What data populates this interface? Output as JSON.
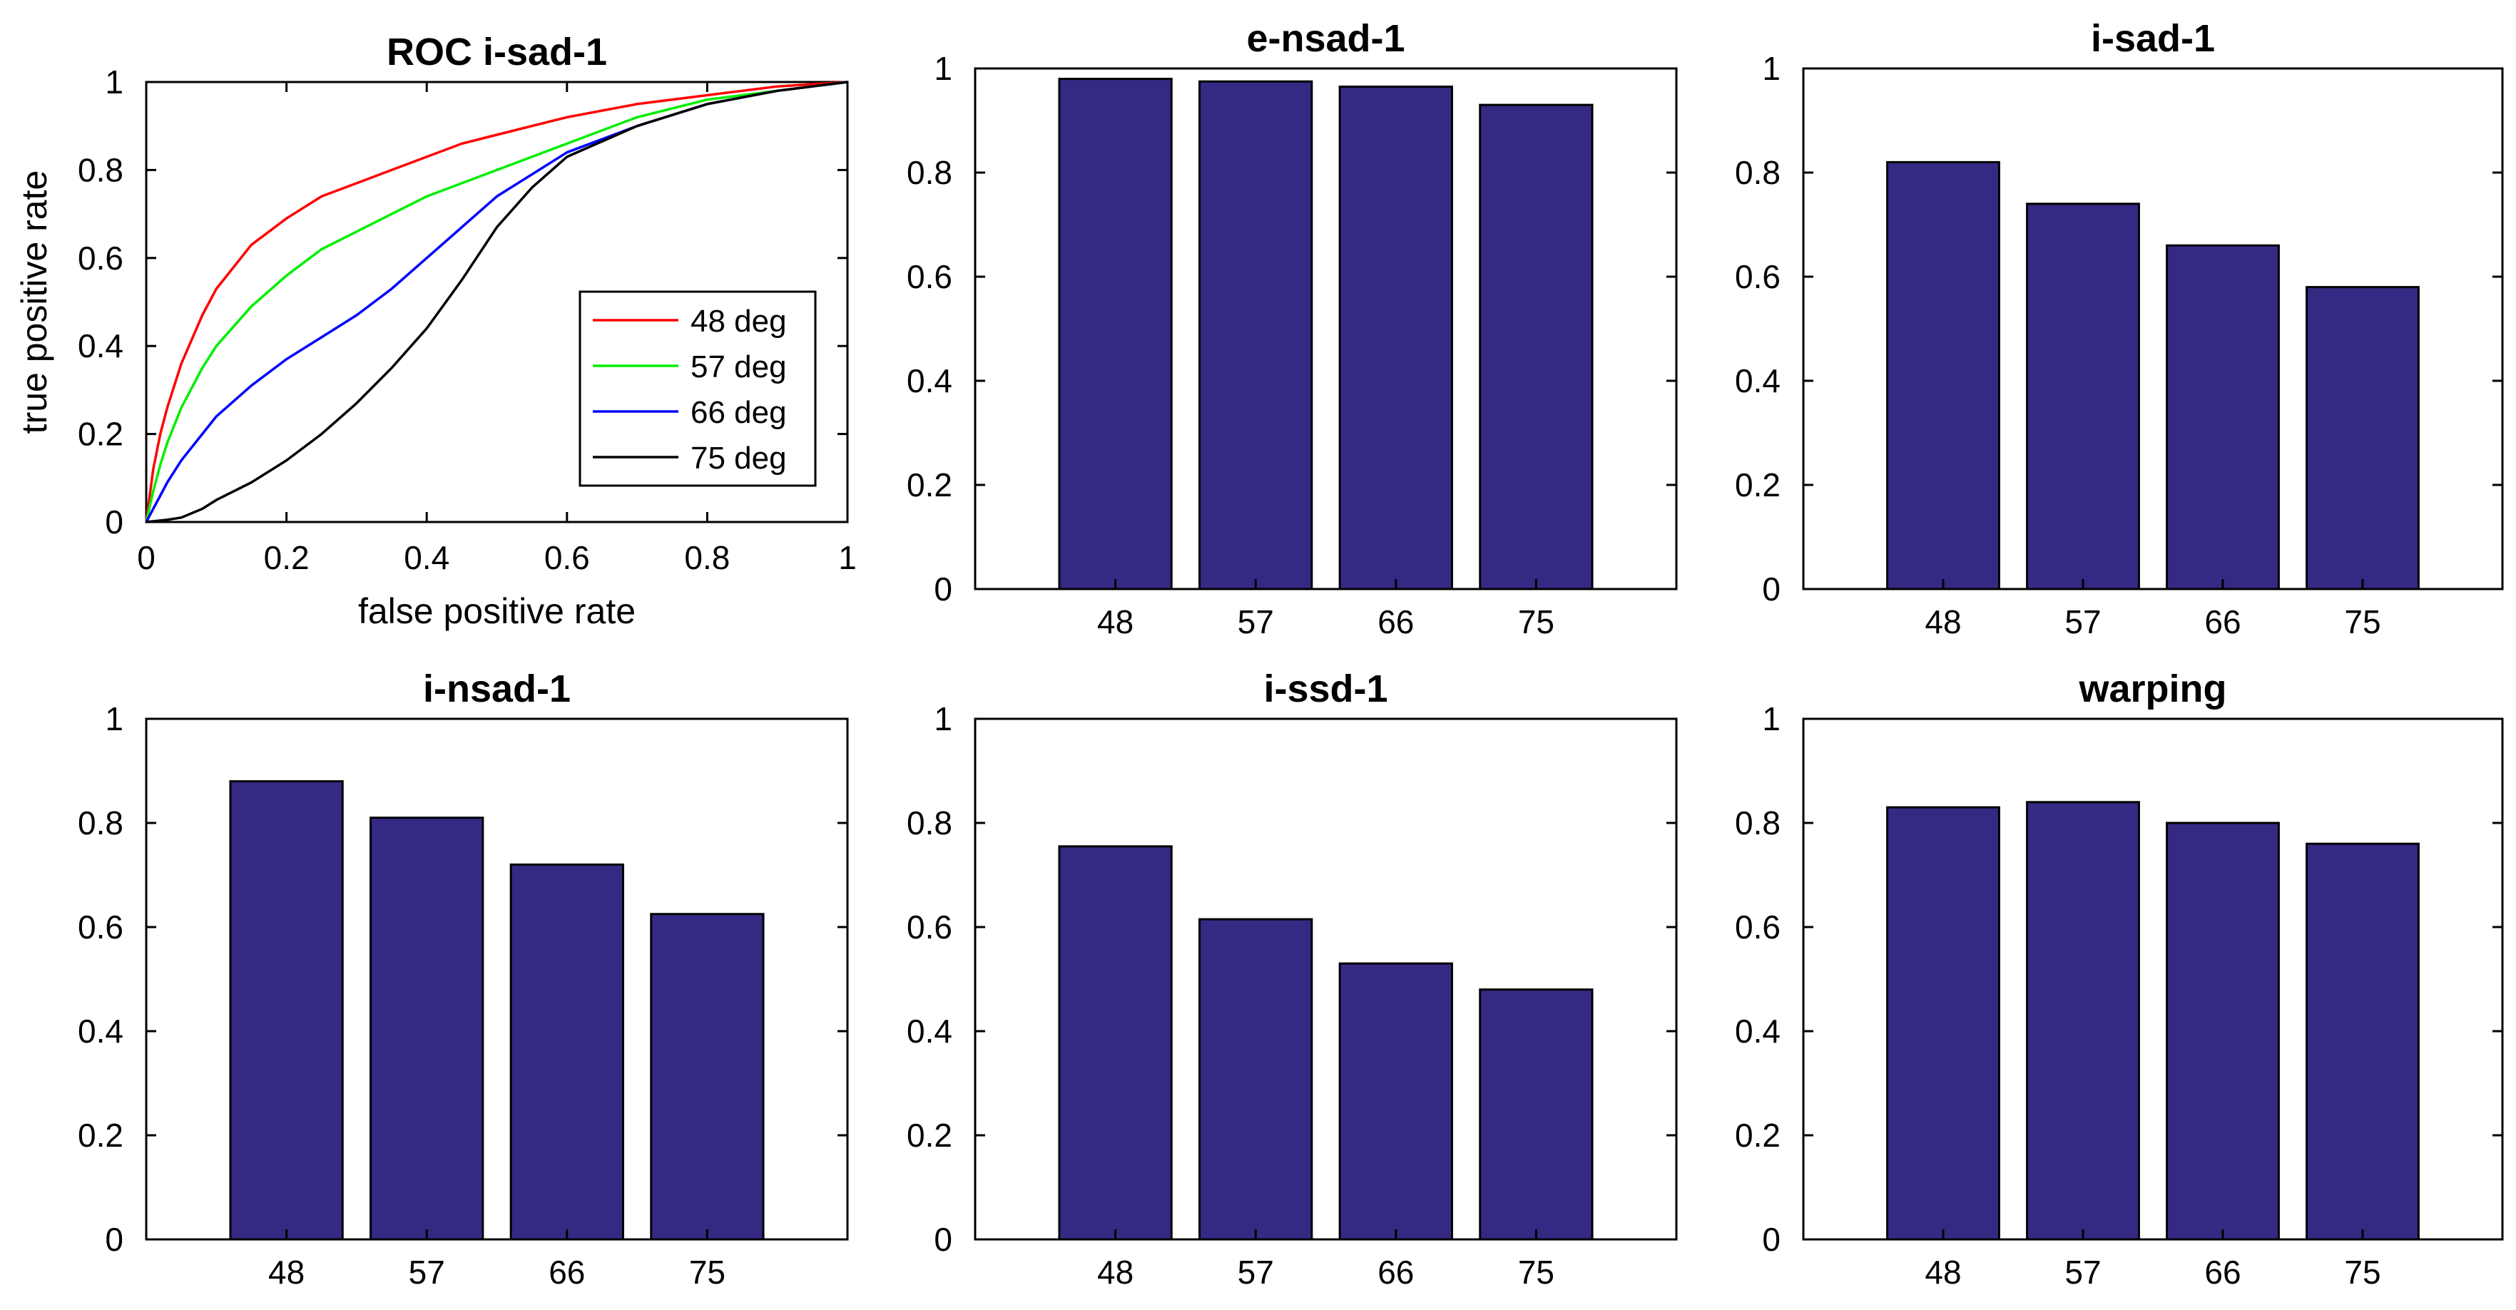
{
  "chart_data": [
    {
      "type": "line",
      "title": "ROC i-sad-1",
      "xlabel": "false positive rate",
      "ylabel": "true positive rate",
      "xlim": [
        0,
        1
      ],
      "ylim": [
        0,
        1
      ],
      "xticks": [
        "0",
        "0.2",
        "0.4",
        "0.6",
        "0.8",
        "1"
      ],
      "yticks": [
        "0",
        "0.2",
        "0.4",
        "0.6",
        "0.8",
        "1"
      ],
      "grid": false,
      "legend_position": "lower-right",
      "series": [
        {
          "name": "48 deg",
          "color": "#ff0000",
          "x": [
            0,
            0.01,
            0.02,
            0.03,
            0.05,
            0.08,
            0.1,
            0.15,
            0.2,
            0.25,
            0.3,
            0.35,
            0.4,
            0.45,
            0.5,
            0.6,
            0.7,
            0.8,
            0.9,
            0.95,
            1
          ],
          "y": [
            0,
            0.12,
            0.2,
            0.26,
            0.36,
            0.47,
            0.53,
            0.63,
            0.69,
            0.74,
            0.77,
            0.8,
            0.83,
            0.86,
            0.88,
            0.92,
            0.95,
            0.97,
            0.99,
            0.995,
            1
          ]
        },
        {
          "name": "57 deg",
          "color": "#00ee00",
          "x": [
            0,
            0.01,
            0.02,
            0.03,
            0.05,
            0.08,
            0.1,
            0.15,
            0.2,
            0.25,
            0.3,
            0.35,
            0.4,
            0.45,
            0.5,
            0.6,
            0.7,
            0.8,
            0.9,
            0.95,
            1
          ],
          "y": [
            0,
            0.07,
            0.13,
            0.18,
            0.26,
            0.35,
            0.4,
            0.49,
            0.56,
            0.62,
            0.66,
            0.7,
            0.74,
            0.77,
            0.8,
            0.86,
            0.92,
            0.96,
            0.98,
            0.99,
            1
          ]
        },
        {
          "name": "66 deg",
          "color": "#0000ff",
          "x": [
            0,
            0.01,
            0.02,
            0.03,
            0.05,
            0.08,
            0.1,
            0.15,
            0.2,
            0.25,
            0.3,
            0.35,
            0.4,
            0.45,
            0.5,
            0.6,
            0.7,
            0.8,
            0.9,
            0.95,
            1
          ],
          "y": [
            0,
            0.03,
            0.06,
            0.09,
            0.14,
            0.2,
            0.24,
            0.31,
            0.37,
            0.42,
            0.47,
            0.53,
            0.6,
            0.67,
            0.74,
            0.84,
            0.9,
            0.95,
            0.98,
            0.99,
            1
          ]
        },
        {
          "name": "75 deg",
          "color": "#000000",
          "x": [
            0,
            0.03,
            0.05,
            0.08,
            0.1,
            0.15,
            0.2,
            0.25,
            0.3,
            0.35,
            0.4,
            0.45,
            0.5,
            0.55,
            0.6,
            0.7,
            0.8,
            0.9,
            0.95,
            1
          ],
          "y": [
            0,
            0.005,
            0.01,
            0.03,
            0.05,
            0.09,
            0.14,
            0.2,
            0.27,
            0.35,
            0.44,
            0.55,
            0.67,
            0.76,
            0.83,
            0.9,
            0.95,
            0.98,
            0.99,
            1
          ]
        }
      ]
    },
    {
      "type": "bar",
      "title": "e-nsad-1",
      "categories": [
        "48",
        "57",
        "66",
        "75"
      ],
      "values": [
        0.98,
        0.975,
        0.965,
        0.93
      ],
      "ylim": [
        0,
        1
      ],
      "yticks": [
        "0",
        "0.2",
        "0.4",
        "0.6",
        "0.8",
        "1"
      ],
      "bar_color": "#342a84"
    },
    {
      "type": "bar",
      "title": "i-sad-1",
      "categories": [
        "48",
        "57",
        "66",
        "75"
      ],
      "values": [
        0.82,
        0.74,
        0.66,
        0.58
      ],
      "ylim": [
        0,
        1
      ],
      "yticks": [
        "0",
        "0.2",
        "0.4",
        "0.6",
        "0.8",
        "1"
      ],
      "bar_color": "#342a84"
    },
    {
      "type": "bar",
      "title": "i-nsad-1",
      "categories": [
        "48",
        "57",
        "66",
        "75"
      ],
      "values": [
        0.88,
        0.81,
        0.72,
        0.625
      ],
      "ylim": [
        0,
        1
      ],
      "yticks": [
        "0",
        "0.2",
        "0.4",
        "0.6",
        "0.8",
        "1"
      ],
      "bar_color": "#342a84"
    },
    {
      "type": "bar",
      "title": "i-ssd-1",
      "categories": [
        "48",
        "57",
        "66",
        "75"
      ],
      "values": [
        0.755,
        0.615,
        0.53,
        0.48
      ],
      "ylim": [
        0,
        1
      ],
      "yticks": [
        "0",
        "0.2",
        "0.4",
        "0.6",
        "0.8",
        "1"
      ],
      "bar_color": "#342a84"
    },
    {
      "type": "bar",
      "title": "warping",
      "categories": [
        "48",
        "57",
        "66",
        "75"
      ],
      "values": [
        0.83,
        0.84,
        0.8,
        0.76
      ],
      "ylim": [
        0,
        1
      ],
      "yticks": [
        "0",
        "0.2",
        "0.4",
        "0.6",
        "0.8",
        "1"
      ],
      "bar_color": "#342a84"
    }
  ]
}
